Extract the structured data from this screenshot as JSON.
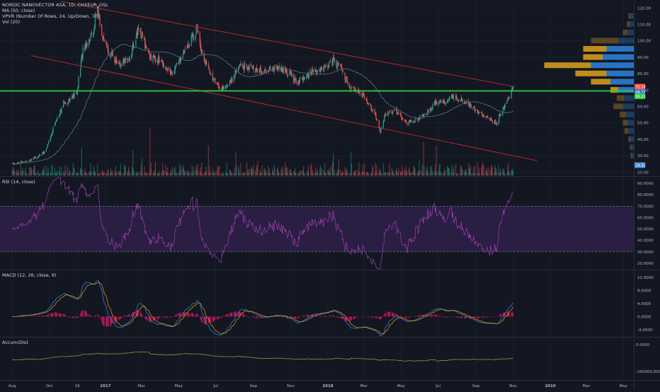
{
  "header": {
    "symbol_line": "NORDIC NANOVECTOR ASA, 1D, CHXEUR_OSL",
    "ma_label": "MA (50, close)",
    "vpvr_label": "VPVR (Number Of Rows, 24, Up/Down, 70)",
    "vol_label": "Vol (20)"
  },
  "colors": {
    "background": "#131722",
    "grid": "#1f2433",
    "up": "#26a69a",
    "down": "#ef5350",
    "channel": "#c22a2a",
    "support_line": "#2ecc40",
    "ma": "#4f7a8a",
    "rsi": "#9c3fb2",
    "rsi_band": "#2e1f46",
    "macd": "#2196f3",
    "signal": "#ff9800",
    "hist": "#c2185b",
    "accum": "#a5a53a",
    "vp_up": "#2a7fd4",
    "vp_down": "#d49a1c"
  },
  "chart_data": [
    {
      "type": "candlestick",
      "name": "price",
      "y_ticks": [
        "120.00",
        "110.00",
        "100.00",
        "90.00",
        "80.00",
        "70.00",
        "60.00",
        "50.00",
        "40.00",
        "30.00",
        "20.00"
      ],
      "ylim": [
        18,
        124
      ],
      "x_ticks": [
        "Aug",
        "Oct",
        "16",
        "2017",
        "Mar",
        "May",
        "Jul",
        "Sep",
        "Nov",
        "2018",
        "Mar",
        "May",
        "Jul",
        "Sep",
        "Nov",
        "2019",
        "Mar",
        "May"
      ],
      "anchors": [
        [
          "2016-08-01",
          25
        ],
        [
          "2016-09-05",
          28
        ],
        [
          "2016-09-25",
          33
        ],
        [
          "2016-10-10",
          50
        ],
        [
          "2016-10-25",
          62
        ],
        [
          "2016-11-15",
          68
        ],
        [
          "2016-11-25",
          95
        ],
        [
          "2016-12-12",
          105
        ],
        [
          "2016-12-18",
          122
        ],
        [
          "2016-12-28",
          100
        ],
        [
          "2017-01-10",
          92
        ],
        [
          "2017-01-25",
          85
        ],
        [
          "2017-02-10",
          90
        ],
        [
          "2017-02-25",
          108
        ],
        [
          "2017-03-15",
          90
        ],
        [
          "2017-04-01",
          88
        ],
        [
          "2017-04-20",
          80
        ],
        [
          "2017-05-15",
          96
        ],
        [
          "2017-06-01",
          108
        ],
        [
          "2017-06-10",
          90
        ],
        [
          "2017-06-25",
          78
        ],
        [
          "2017-07-10",
          70
        ],
        [
          "2017-07-25",
          75
        ],
        [
          "2017-08-10",
          85
        ],
        [
          "2017-09-01",
          83
        ],
        [
          "2017-09-20",
          81
        ],
        [
          "2017-10-10",
          84
        ],
        [
          "2017-10-30",
          80
        ],
        [
          "2017-11-10",
          74
        ],
        [
          "2017-11-25",
          78
        ],
        [
          "2017-12-10",
          82
        ],
        [
          "2017-12-25",
          83
        ],
        [
          "2018-01-10",
          88
        ],
        [
          "2018-01-20",
          85
        ],
        [
          "2018-02-05",
          72
        ],
        [
          "2018-02-20",
          70
        ],
        [
          "2018-03-05",
          64
        ],
        [
          "2018-03-20",
          55
        ],
        [
          "2018-03-28",
          45
        ],
        [
          "2018-04-05",
          55
        ],
        [
          "2018-04-20",
          58
        ],
        [
          "2018-05-10",
          50
        ],
        [
          "2018-05-25",
          52
        ],
        [
          "2018-06-10",
          55
        ],
        [
          "2018-06-25",
          62
        ],
        [
          "2018-07-10",
          63
        ],
        [
          "2018-07-25",
          66
        ],
        [
          "2018-08-10",
          64
        ],
        [
          "2018-08-25",
          60
        ],
        [
          "2018-09-10",
          55
        ],
        [
          "2018-09-25",
          52
        ],
        [
          "2018-10-05",
          50
        ],
        [
          "2018-10-15",
          58
        ],
        [
          "2018-10-25",
          65
        ],
        [
          "2018-11-01",
          72
        ]
      ],
      "last_price": "72.10",
      "price_badges": [
        "72.15",
        "68.77",
        "66.23",
        "24.32"
      ],
      "channel_upper": [
        [
          "2016-10-20",
          124
        ],
        [
          "2018-11-05",
          72
        ]
      ],
      "channel_lower": [
        [
          "2016-09-01",
          91
        ],
        [
          "2018-12-10",
          27
        ]
      ],
      "support_level": 69.5,
      "ma_period": 50,
      "volume_profile": [
        {
          "price": 115,
          "up": 4,
          "down": 3
        },
        {
          "price": 110,
          "up": 5,
          "down": 4
        },
        {
          "price": 105,
          "up": 8,
          "down": 6
        },
        {
          "price": 100,
          "up": 20,
          "down": 35
        },
        {
          "price": 95,
          "up": 35,
          "down": 30
        },
        {
          "price": 90,
          "up": 40,
          "down": 25
        },
        {
          "price": 85,
          "up": 55,
          "down": 60
        },
        {
          "price": 80,
          "up": 35,
          "down": 40
        },
        {
          "price": 75,
          "up": 30,
          "down": 25
        },
        {
          "price": 70,
          "up": 20,
          "down": 10
        },
        {
          "price": 65,
          "up": 12,
          "down": 10
        },
        {
          "price": 60,
          "up": 14,
          "down": 12
        },
        {
          "price": 55,
          "up": 10,
          "down": 8
        },
        {
          "price": 50,
          "up": 8,
          "down": 6
        },
        {
          "price": 45,
          "up": 7,
          "down": 5
        },
        {
          "price": 40,
          "up": 4,
          "down": 3
        },
        {
          "price": 35,
          "up": 3,
          "down": 2
        },
        {
          "price": 30,
          "up": 2,
          "down": 2
        }
      ]
    },
    {
      "type": "line",
      "name": "rsi",
      "label": "RSI (14, close)",
      "y_ticks": [
        "90.0000",
        "80.0000",
        "70.0000",
        "60.0000",
        "50.0000",
        "40.0000",
        "30.0000",
        "20.0000"
      ],
      "ylim": [
        15,
        95
      ],
      "band": [
        30,
        70
      ]
    },
    {
      "type": "line",
      "name": "macd",
      "label": "MACD (12, 26, close, 9)",
      "y_ticks": [
        "12.0000",
        "8.0000",
        "4.0000",
        "0.0000",
        "-4.0000"
      ],
      "ylim": [
        -6,
        14
      ]
    },
    {
      "type": "line",
      "name": "accum",
      "label": "Accum/Dist",
      "y_ticks": [
        "0.0000",
        "-250000.0000"
      ],
      "ylim": [
        -330000,
        60000
      ]
    }
  ]
}
